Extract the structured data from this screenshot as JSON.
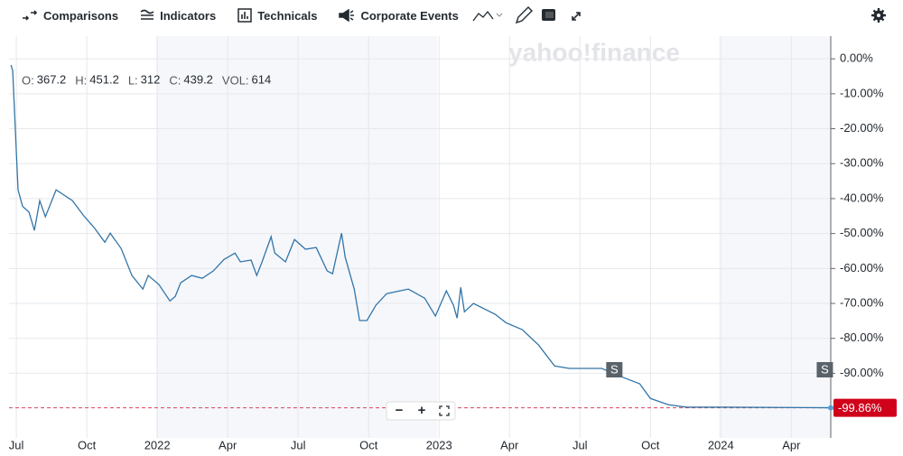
{
  "toolbar": {
    "items": [
      "Comparisons",
      "Indicators",
      "Technicals",
      "Corporate Events"
    ]
  },
  "watermark": "yahoo!finance",
  "ohlc": [
    {
      "label": "O:",
      "value": "367.2"
    },
    {
      "label": "H:",
      "value": "451.2"
    },
    {
      "label": "L:",
      "value": "312"
    },
    {
      "label": "C:",
      "value": "439.2"
    },
    {
      "label": "VOL:",
      "value": "614"
    }
  ],
  "zoom_controls": [
    "−",
    "+"
  ],
  "chart_data": {
    "type": "line",
    "x": [
      2021.481,
      2021.487,
      2021.506,
      2021.522,
      2021.545,
      2021.564,
      2021.583,
      2021.603,
      2021.641,
      2021.699,
      2021.737,
      2021.776,
      2021.814,
      2021.833,
      2021.872,
      2021.91,
      2021.949,
      2021.968,
      2022.006,
      2022.045,
      2022.064,
      2022.083,
      2022.122,
      2022.16,
      2022.199,
      2022.237,
      2022.276,
      2022.295,
      2022.333,
      2022.353,
      2022.372,
      2022.404,
      2022.417,
      2022.455,
      2022.487,
      2022.526,
      2022.564,
      2022.603,
      2022.622,
      2022.654,
      2022.667,
      2022.699,
      2022.718,
      2022.744,
      2022.776,
      2022.814,
      2022.891,
      2022.949,
      2022.987,
      2023.026,
      2023.051,
      2023.064,
      2023.077,
      2023.09,
      2023.122,
      2023.199,
      2023.237,
      2023.295,
      2023.353,
      2023.41,
      2023.462,
      2023.577,
      2023.654,
      2023.712,
      2023.75,
      2023.814,
      2023.878,
      2024.006,
      2024.391
    ],
    "series": [
      {
        "color": "#3275a8",
        "values": [
          -1.8,
          -3.4,
          -37.5,
          -42.2,
          -43.9,
          -49.1,
          -40.6,
          -45.2,
          -37.5,
          -40.6,
          -44.7,
          -48.3,
          -52.5,
          -49.9,
          -54.3,
          -62.0,
          -65.9,
          -62.0,
          -64.6,
          -69.3,
          -68.0,
          -64.1,
          -62.0,
          -62.8,
          -60.7,
          -57.4,
          -55.6,
          -58.1,
          -57.6,
          -62.0,
          -58.1,
          -50.9,
          -55.6,
          -58.1,
          -51.7,
          -54.5,
          -54.0,
          -60.7,
          -61.5,
          -49.9,
          -56.8,
          -65.9,
          -74.9,
          -74.9,
          -70.5,
          -67.2,
          -65.9,
          -68.5,
          -73.6,
          -66.4,
          -70.5,
          -74.2,
          -65.4,
          -72.4,
          -70.0,
          -73.1,
          -75.5,
          -77.5,
          -81.9,
          -87.9,
          -88.6,
          -88.6,
          -91.2,
          -93.0,
          -97.2,
          -99.0,
          -99.7,
          -99.7,
          -99.86
        ]
      }
    ],
    "xlim": [
      2021.474,
      2024.39
    ],
    "xticks": [
      {
        "value": 2021.5,
        "label": "Jul"
      },
      {
        "value": 2021.75,
        "label": "Oct"
      },
      {
        "value": 2022,
        "label": "2022"
      },
      {
        "value": 2022.25,
        "label": "Apr"
      },
      {
        "value": 2022.5,
        "label": "Jul"
      },
      {
        "value": 2022.75,
        "label": "Oct"
      },
      {
        "value": 2023,
        "label": "2023"
      },
      {
        "value": 2023.25,
        "label": "Apr"
      },
      {
        "value": 2023.5,
        "label": "Jul"
      },
      {
        "value": 2023.75,
        "label": "Oct"
      },
      {
        "value": 2024,
        "label": "2024"
      },
      {
        "value": 2024.25,
        "label": "Apr"
      }
    ],
    "ylim": [
      -108.5,
      6.5
    ],
    "yticks": [
      {
        "value": 0,
        "label": "0.00%"
      },
      {
        "value": -10,
        "label": "-10.00%"
      },
      {
        "value": -20,
        "label": "-20.00%"
      },
      {
        "value": -30,
        "label": "-30.00%"
      },
      {
        "value": -40,
        "label": "-40.00%"
      },
      {
        "value": -50,
        "label": "-50.00%"
      },
      {
        "value": -60,
        "label": "-60.00%"
      },
      {
        "value": -70,
        "label": "-70.00%"
      },
      {
        "value": -80,
        "label": "-80.00%"
      },
      {
        "value": -90,
        "label": "-90.00%"
      }
    ],
    "last_value": {
      "value": -99.86,
      "label": "-99.86%"
    },
    "events": [
      {
        "label": "S",
        "x": 2023.622
      },
      {
        "label": "S",
        "x": 2024.369
      }
    ],
    "grid": true
  }
}
